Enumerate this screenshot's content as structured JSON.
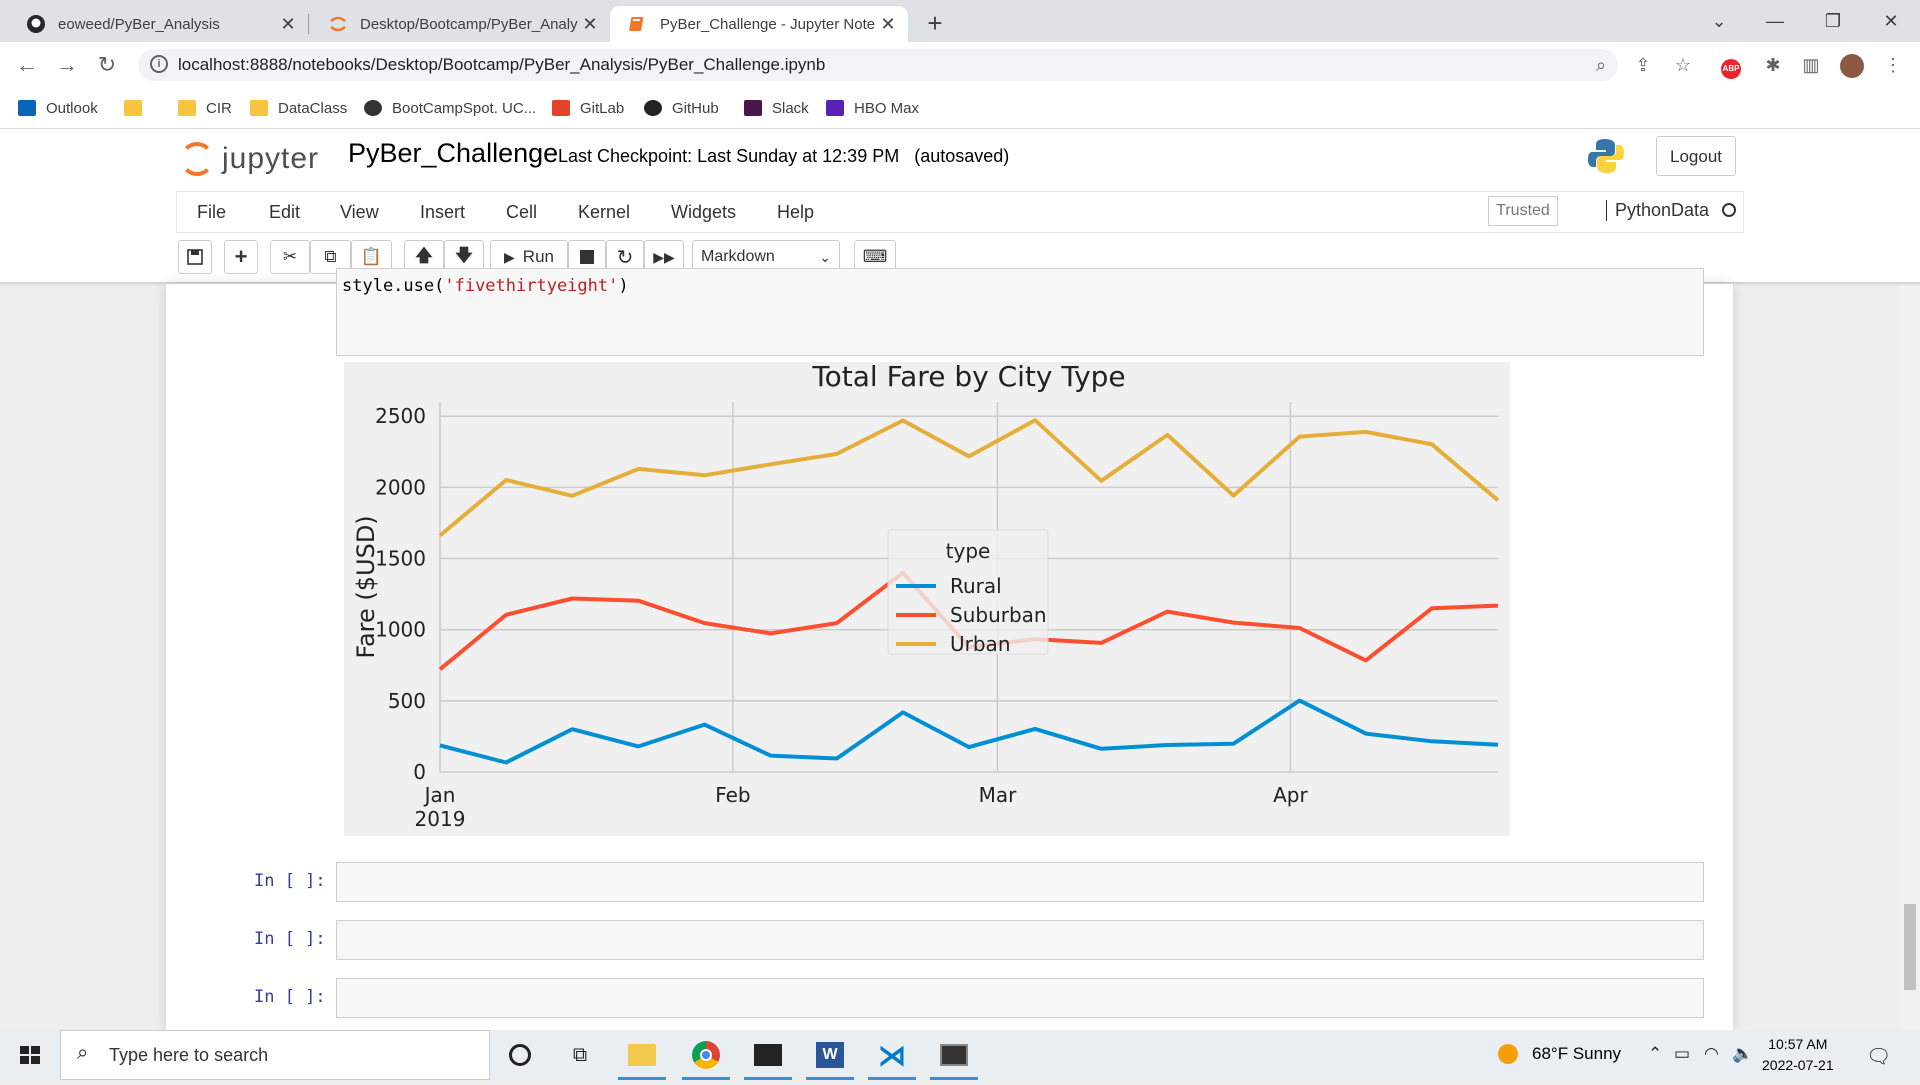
{
  "browser": {
    "tabs": [
      {
        "title": "eoweed/PyBer_Analysis",
        "icon": "github-icon"
      },
      {
        "title": "Desktop/Bootcamp/PyBer_Analysis",
        "icon": "jupyter-icon"
      },
      {
        "title": "PyBer_Challenge - Jupyter Notebook",
        "icon": "jupyter-notebook-icon"
      }
    ],
    "url": "localhost:8888/notebooks/Desktop/Bootcamp/PyBer_Analysis/PyBer_Challenge.ipynb",
    "bookmarks": [
      {
        "label": "Outlook",
        "color": "#0a64b8"
      },
      {
        "label": "",
        "color": "#f5c542"
      },
      {
        "label": "CIR",
        "color": "#f5c542"
      },
      {
        "label": "DataClass",
        "color": "#f5c542"
      },
      {
        "label": "BootCampSpot. UC...",
        "color": "#333333"
      },
      {
        "label": "GitLab",
        "color": "#e24329"
      },
      {
        "label": "GitHub",
        "color": "#222222"
      },
      {
        "label": "Slack",
        "color": "#4a154b"
      },
      {
        "label": "HBO Max",
        "color": "#5822b4"
      }
    ]
  },
  "jupyter": {
    "logo_text": "jupyter",
    "notebook_name": "PyBer_Challenge",
    "checkpoint": "Last Checkpoint: Last Sunday at 12:39 PM",
    "autosaved": "(autosaved)",
    "logout_label": "Logout",
    "menu": [
      "File",
      "Edit",
      "View",
      "Insert",
      "Cell",
      "Kernel",
      "Widgets",
      "Help"
    ],
    "trusted_label": "Trusted",
    "kernel_name": "PythonData",
    "run_label": "Run",
    "cell_type": "Markdown"
  },
  "notebook": {
    "code_prefix": "style.use(",
    "code_string": "'fivethirtyeight'",
    "code_suffix": ")",
    "empty_prompt": "In [ ]:"
  },
  "chart_data": {
    "type": "line",
    "title": "Total Fare by City Type",
    "ylabel": "Fare ($USD)",
    "xlabel": "",
    "ylim": [
      0,
      2600
    ],
    "yticks": [
      0,
      500,
      1000,
      1500,
      2000,
      2500
    ],
    "x_tick_labels": [
      {
        "label": "Jan",
        "sub": "2019",
        "week": 0
      },
      {
        "label": "Feb",
        "sub": "",
        "week": 4.43
      },
      {
        "label": "Mar",
        "sub": "",
        "week": 8.43
      },
      {
        "label": "Apr",
        "sub": "",
        "week": 12.86
      }
    ],
    "x": [
      "2019-01-06",
      "2019-01-13",
      "2019-01-20",
      "2019-01-27",
      "2019-02-03",
      "2019-02-10",
      "2019-02-17",
      "2019-02-24",
      "2019-03-03",
      "2019-03-10",
      "2019-03-17",
      "2019-03-24",
      "2019-03-31",
      "2019-04-07",
      "2019-04-14",
      "2019-04-21",
      "2019-04-28"
    ],
    "series": [
      {
        "name": "Rural",
        "color": "#008fd5",
        "values": [
          187,
          67,
          301,
          180,
          333,
          115,
          95,
          419,
          175,
          303,
          163,
          190,
          199,
          502,
          270,
          216,
          191
        ]
      },
      {
        "name": "Suburban",
        "color": "#fc4f30",
        "values": [
          722,
          1105,
          1219,
          1204,
          1046,
          974,
          1046,
          1400,
          876,
          934,
          907,
          1127,
          1050,
          1012,
          784,
          1150,
          1169
        ]
      },
      {
        "name": "Urban",
        "color": "#e5ae38",
        "values": [
          1662,
          2052,
          1941,
          2130,
          2085,
          2162,
          2235,
          2470,
          2218,
          2472,
          2046,
          2369,
          1942,
          2357,
          2390,
          2303,
          1909
        ]
      }
    ],
    "legend": {
      "title": "type",
      "placement": "center"
    },
    "grid": true
  },
  "taskbar": {
    "search_placeholder": "Type here to search",
    "weather": "68°F  Sunny",
    "time": "10:57 AM",
    "date": "2022-07-21"
  }
}
